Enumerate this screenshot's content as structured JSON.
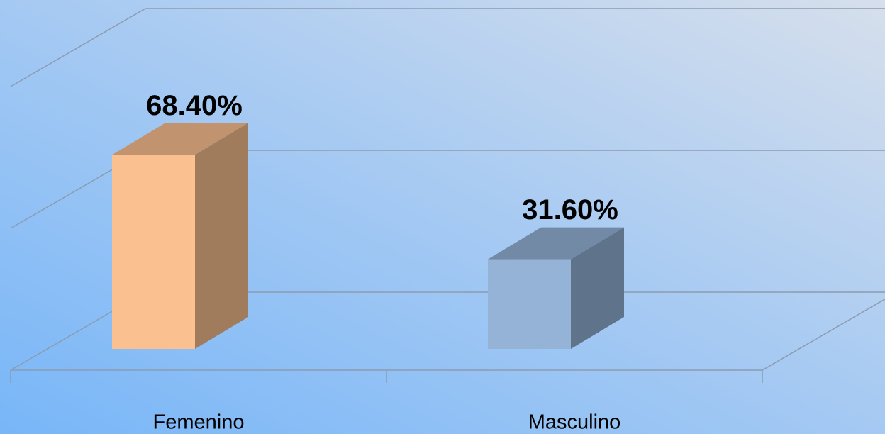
{
  "chart_data": {
    "type": "bar3d",
    "categories": [
      "Femenino",
      "Masculino"
    ],
    "values": [
      68.4,
      31.6
    ],
    "value_labels": [
      "68.40%",
      "31.60%"
    ],
    "colors": [
      "#fac090",
      "#95b3d7"
    ],
    "ylim": [
      0,
      100
    ],
    "yticks": [
      0,
      50,
      100
    ],
    "grid": true
  }
}
